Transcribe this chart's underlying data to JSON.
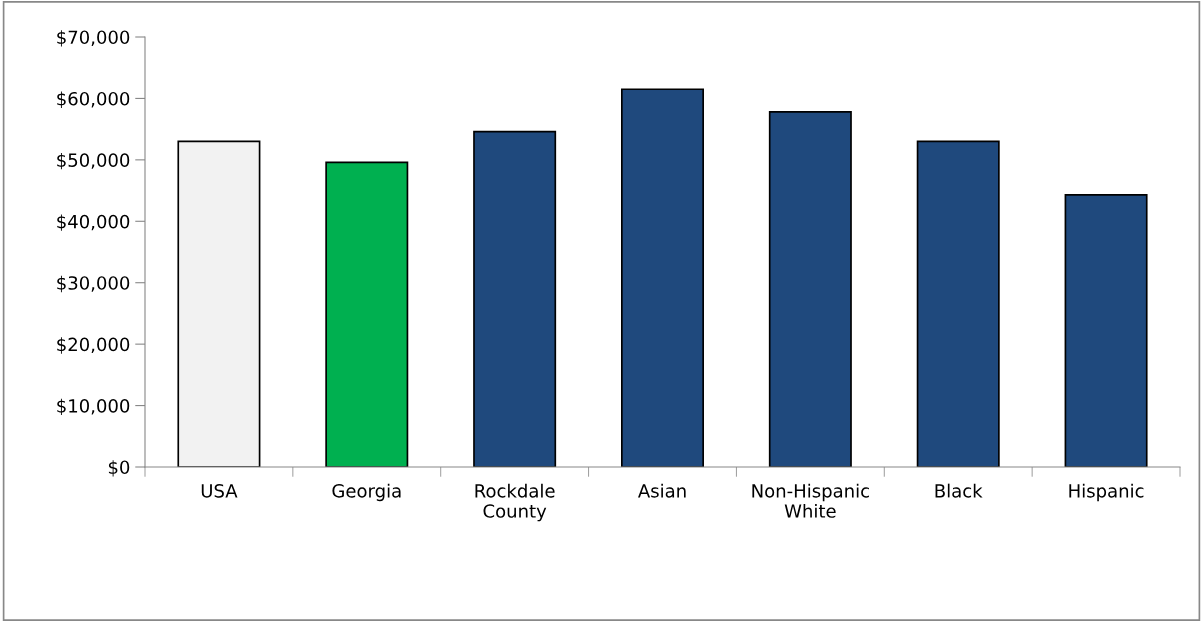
{
  "chart_data": {
    "type": "bar",
    "categories": [
      "USA",
      "Georgia",
      "Rockdale\nCounty",
      "Asian",
      "Non-Hispanic\nWhite",
      "Black",
      "Hispanic"
    ],
    "values": [
      53000,
      49600,
      54600,
      61500,
      57800,
      53000,
      44300
    ],
    "colors": [
      "#f2f2f2",
      "#00b050",
      "#1f497d",
      "#1f497d",
      "#1f497d",
      "#1f497d",
      "#1f497d"
    ],
    "ylim": [
      0,
      70000
    ],
    "yticks": [
      {
        "value": 0,
        "label": "$0"
      },
      {
        "value": 10000,
        "label": "$10,000"
      },
      {
        "value": 20000,
        "label": "$20,000"
      },
      {
        "value": 30000,
        "label": "$30,000"
      },
      {
        "value": 40000,
        "label": "$40,000"
      },
      {
        "value": 50000,
        "label": "$50,000"
      },
      {
        "value": 60000,
        "label": "$60,000"
      },
      {
        "value": 70000,
        "label": "$70,000"
      }
    ],
    "grid": false
  }
}
